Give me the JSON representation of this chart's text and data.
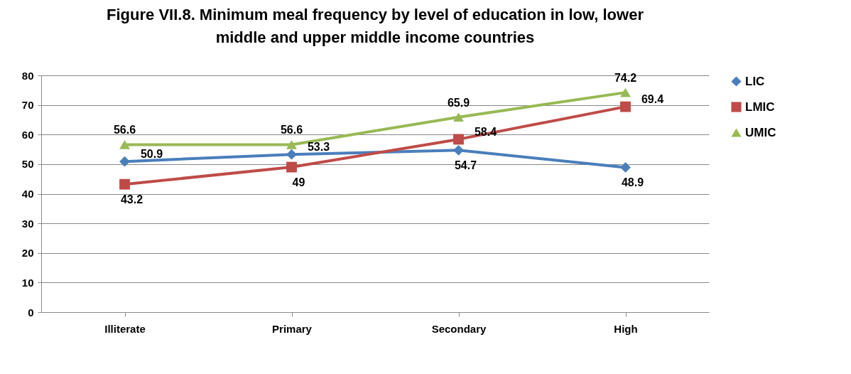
{
  "chart_data": {
    "type": "line",
    "title": "Figure VII.8. Minimum meal frequency by level of education in low, lower middle and upper middle income countries",
    "categories": [
      "Illiterate",
      "Primary",
      "Secondary",
      "High"
    ],
    "series": [
      {
        "name": "LIC",
        "color": "#4a7ebb",
        "marker": "diamond",
        "values": [
          50.9,
          53.3,
          54.7,
          48.9
        ]
      },
      {
        "name": "LMIC",
        "color": "#be4b48",
        "marker": "square",
        "values": [
          43.2,
          49,
          58.4,
          69.4
        ]
      },
      {
        "name": "UMIC",
        "color": "#98b954",
        "marker": "triangle",
        "values": [
          56.6,
          56.6,
          65.9,
          74.2
        ]
      }
    ],
    "ylim": [
      0,
      80
    ],
    "yticks": [
      0,
      10,
      20,
      30,
      40,
      50,
      60,
      70,
      80
    ],
    "grid": "y",
    "legend": "right",
    "data_labels": true
  }
}
